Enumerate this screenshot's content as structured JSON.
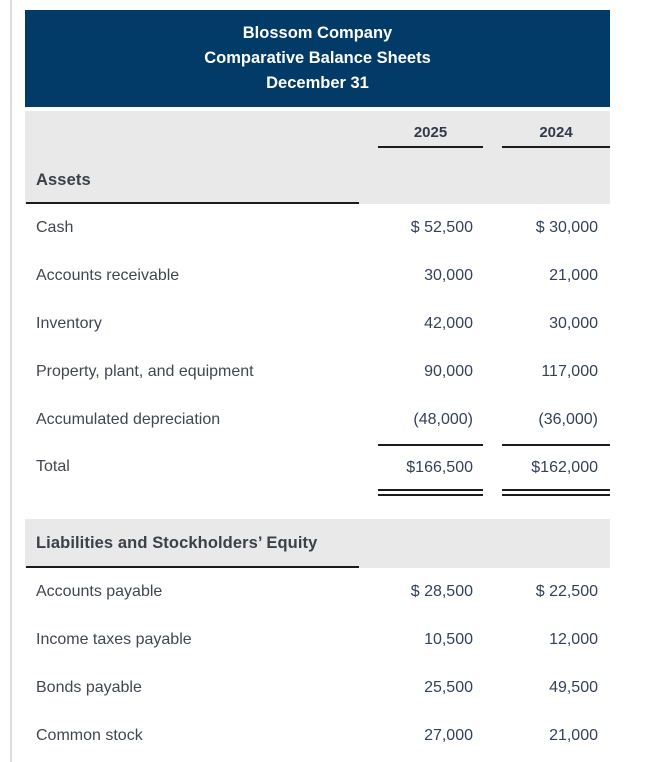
{
  "header": {
    "company": "Blossom Company",
    "title": "Comparative Balance Sheets",
    "date": "December 31"
  },
  "columns": {
    "year_current": "2025",
    "year_prior": "2024"
  },
  "assets": {
    "heading": "Assets",
    "rows": [
      {
        "label": "Cash",
        "current": "$ 52,500",
        "prior": "$ 30,000"
      },
      {
        "label": "Accounts receivable",
        "current": "30,000",
        "prior": "21,000"
      },
      {
        "label": "Inventory",
        "current": "42,000",
        "prior": "30,000"
      },
      {
        "label": "Property, plant, and equipment",
        "current": "90,000",
        "prior": "117,000"
      },
      {
        "label": "Accumulated depreciation",
        "current": "(48,000)",
        "prior": "(36,000)"
      }
    ],
    "total": {
      "label": "Total",
      "current": "$166,500",
      "prior": "$162,000"
    }
  },
  "liabilities": {
    "heading": "Liabilities and Stockholders’ Equity",
    "rows": [
      {
        "label": "Accounts payable",
        "current": "$ 28,500",
        "prior": "$ 22,500"
      },
      {
        "label": "Income taxes payable",
        "current": "10,500",
        "prior": "12,000"
      },
      {
        "label": "Bonds payable",
        "current": "25,500",
        "prior": "49,500"
      },
      {
        "label": "Common stock",
        "current": "27,000",
        "prior": "21,000"
      }
    ]
  },
  "colors": {
    "header_bg": "#023a68",
    "band_bg": "#e9e9e9",
    "label_text": "#3f4750",
    "value_text": "#33415a",
    "rule": "#1c1c1c"
  }
}
